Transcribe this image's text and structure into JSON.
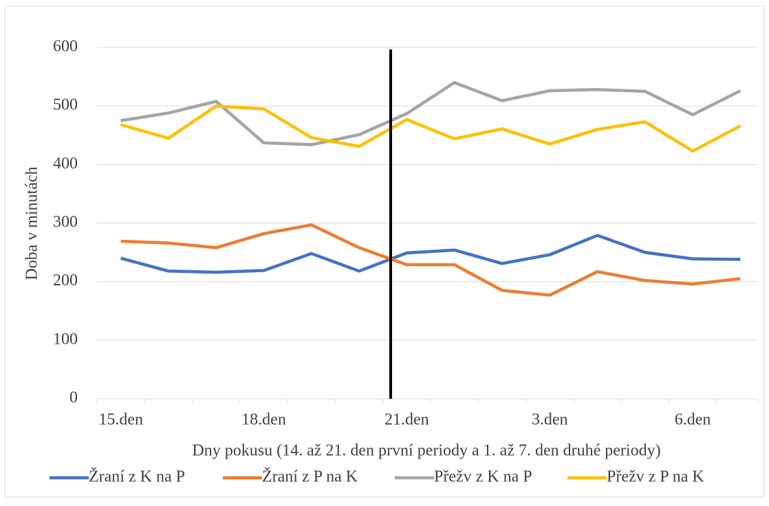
{
  "chart_data": {
    "type": "line",
    "x_label": "Dny pokusu (14. až 21. den první periody a 1. až 7. den druhé periody)",
    "y_label": "Doba v minutách",
    "categories": [
      "15.den",
      null,
      null,
      "18.den",
      null,
      null,
      "21.den",
      null,
      null,
      "3.den",
      null,
      null,
      "6.den",
      null
    ],
    "series": [
      {
        "name": "Žraní z K na P",
        "color": "#4472c4",
        "values": [
          240,
          218,
          216,
          219,
          248,
          218,
          249,
          254,
          231,
          246,
          279,
          250,
          239,
          238
        ]
      },
      {
        "name": "Žraní z P na K",
        "color": "#ed7d31",
        "values": [
          269,
          266,
          258,
          282,
          297,
          258,
          229,
          229,
          185,
          177,
          217,
          202,
          196,
          205
        ]
      },
      {
        "name": "Přežv z K na P",
        "color": "#a5a5a5",
        "values": [
          475,
          488,
          508,
          437,
          434,
          451,
          487,
          540,
          509,
          526,
          528,
          525,
          485,
          526
        ]
      },
      {
        "name": "Přežv z P na K",
        "color": "#ffc000",
        "values": [
          468,
          445,
          500,
          495,
          446,
          431,
          477,
          444,
          461,
          435,
          460,
          473,
          423,
          466
        ]
      }
    ],
    "ylim": [
      0,
      600
    ],
    "yticks": [
      0,
      100,
      200,
      300,
      400,
      500,
      600
    ],
    "grid": true,
    "legend": "bottom"
  }
}
